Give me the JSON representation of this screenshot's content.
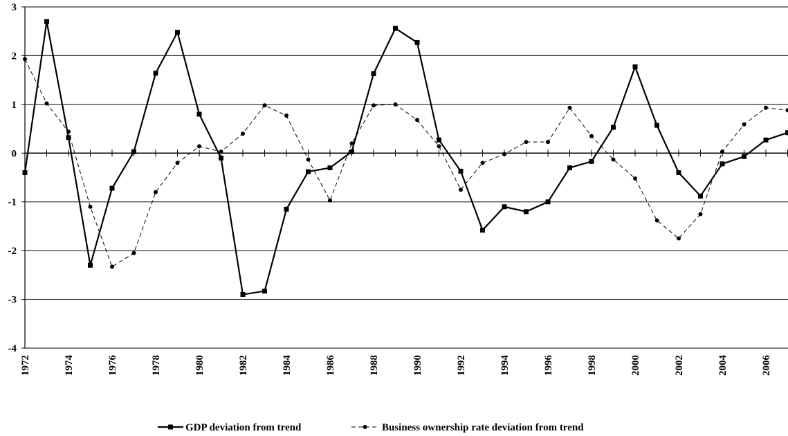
{
  "chart_data": {
    "type": "line",
    "x": [
      1972,
      1973,
      1974,
      1975,
      1976,
      1977,
      1978,
      1979,
      1980,
      1981,
      1982,
      1983,
      1984,
      1985,
      1986,
      1987,
      1988,
      1989,
      1990,
      1991,
      1992,
      1993,
      1994,
      1995,
      1996,
      1997,
      1998,
      1999,
      2000,
      2001,
      2002,
      2003,
      2004,
      2005,
      2006,
      2007
    ],
    "x_tick_labels": [
      "1972",
      "1974",
      "1976",
      "1978",
      "1980",
      "1982",
      "1984",
      "1986",
      "1988",
      "1990",
      "1992",
      "1994",
      "1996",
      "1998",
      "2000",
      "2002",
      "2004",
      "2006"
    ],
    "y_tick_labels": [
      "3",
      "2",
      "1",
      "0",
      "-1",
      "-2",
      "-3",
      "-4"
    ],
    "ylim": [
      -4,
      3
    ],
    "grid": "horizontal",
    "legend_position": "bottom",
    "series": [
      {
        "name": "GDP deviation from trend",
        "style": "solid-square",
        "color": "#000000",
        "values": [
          -0.4,
          2.7,
          0.32,
          -2.3,
          -0.72,
          0.03,
          1.64,
          2.48,
          0.8,
          -0.1,
          -2.9,
          -2.83,
          -1.15,
          -0.38,
          -0.3,
          0.03,
          1.63,
          2.56,
          2.27,
          0.27,
          -0.37,
          -1.58,
          -1.1,
          -1.2,
          -1.0,
          -0.3,
          -0.17,
          0.53,
          1.77,
          0.57,
          -0.4,
          -0.88,
          -0.22,
          -0.07,
          0.27,
          0.42
        ]
      },
      {
        "name": "Business ownership rate deviation from trend",
        "style": "dashed-circle",
        "color": "#000000",
        "values": [
          1.93,
          1.02,
          0.44,
          -1.1,
          -2.33,
          -2.05,
          -0.8,
          -0.2,
          0.14,
          0.03,
          0.4,
          0.98,
          0.77,
          -0.13,
          -0.97,
          0.2,
          0.98,
          1.0,
          0.68,
          0.14,
          -0.75,
          -0.2,
          -0.02,
          0.23,
          0.23,
          0.93,
          0.35,
          -0.13,
          -0.52,
          -1.38,
          -1.75,
          -1.25,
          0.03,
          0.59,
          0.93,
          0.88
        ]
      }
    ]
  }
}
